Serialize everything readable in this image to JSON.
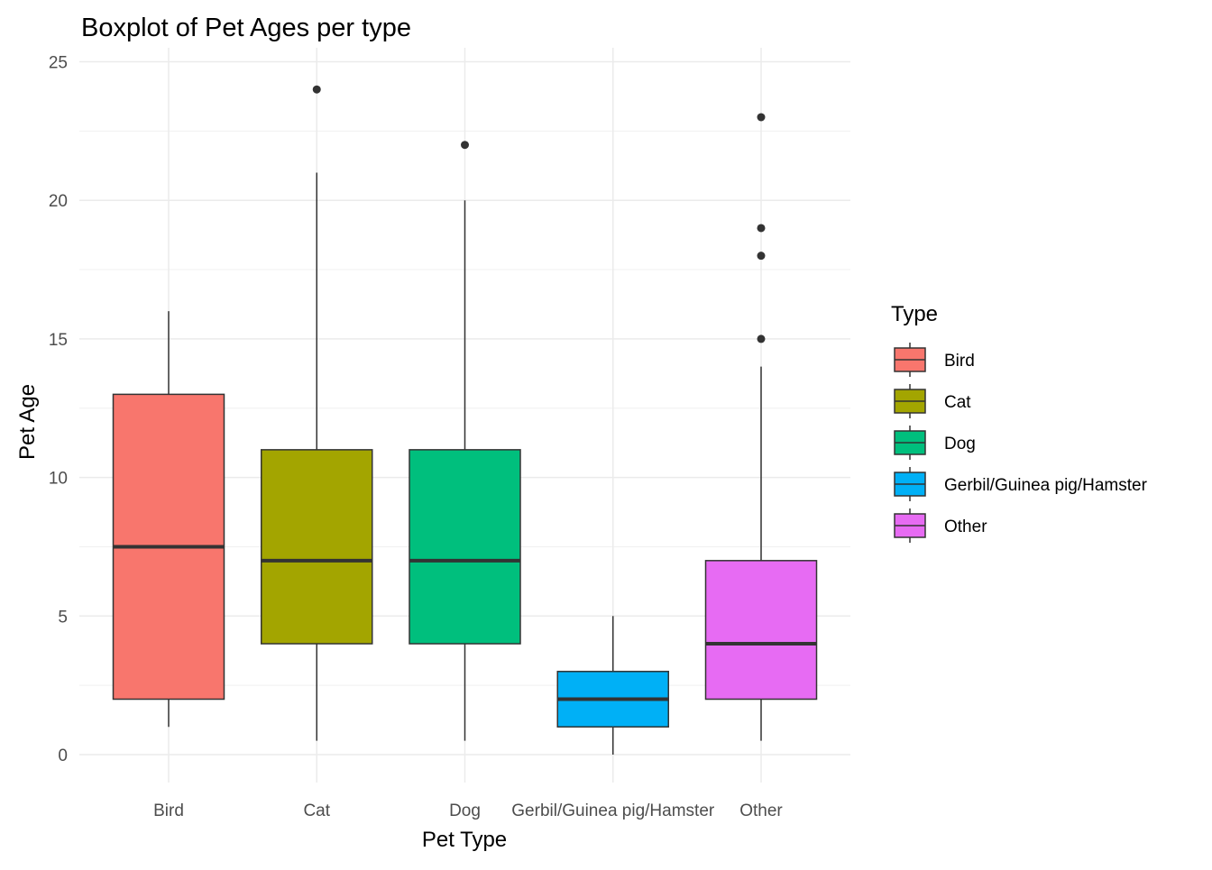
{
  "chart_data": {
    "type": "boxplot",
    "title": "Boxplot of Pet Ages per type",
    "xlabel": "Pet Type",
    "ylabel": "Pet Age",
    "ylim": [
      -1,
      25.5
    ],
    "yticks": [
      0,
      5,
      10,
      15,
      20,
      25
    ],
    "ytick_labels": [
      "0",
      "5",
      "10",
      "15",
      "20",
      "25"
    ],
    "grid": true,
    "legend": {
      "title": "Type",
      "position": "right"
    },
    "categories": [
      "Bird",
      "Cat",
      "Dog",
      "Gerbil/Guinea pig/Hamster",
      "Other"
    ],
    "series": [
      {
        "name": "Bird",
        "color": "#F8766D",
        "whisker_low": 1,
        "q1": 2,
        "median": 7.5,
        "q3": 13,
        "whisker_high": 16,
        "outliers": []
      },
      {
        "name": "Cat",
        "color": "#A3A500",
        "whisker_low": 0.5,
        "q1": 4,
        "median": 7,
        "q3": 11,
        "whisker_high": 21,
        "outliers": [
          24
        ]
      },
      {
        "name": "Dog",
        "color": "#00BF7D",
        "whisker_low": 0.5,
        "q1": 4,
        "median": 7,
        "q3": 11,
        "whisker_high": 20,
        "outliers": [
          22
        ]
      },
      {
        "name": "Gerbil/Guinea pig/Hamster",
        "color": "#00B0F6",
        "whisker_low": 0,
        "q1": 1,
        "median": 2,
        "q3": 3,
        "whisker_high": 5,
        "outliers": []
      },
      {
        "name": "Other",
        "color": "#E76BF3",
        "whisker_low": 0.5,
        "q1": 2,
        "median": 4,
        "q3": 7,
        "whisker_high": 14,
        "outliers": [
          15,
          18,
          19,
          23
        ]
      }
    ]
  }
}
